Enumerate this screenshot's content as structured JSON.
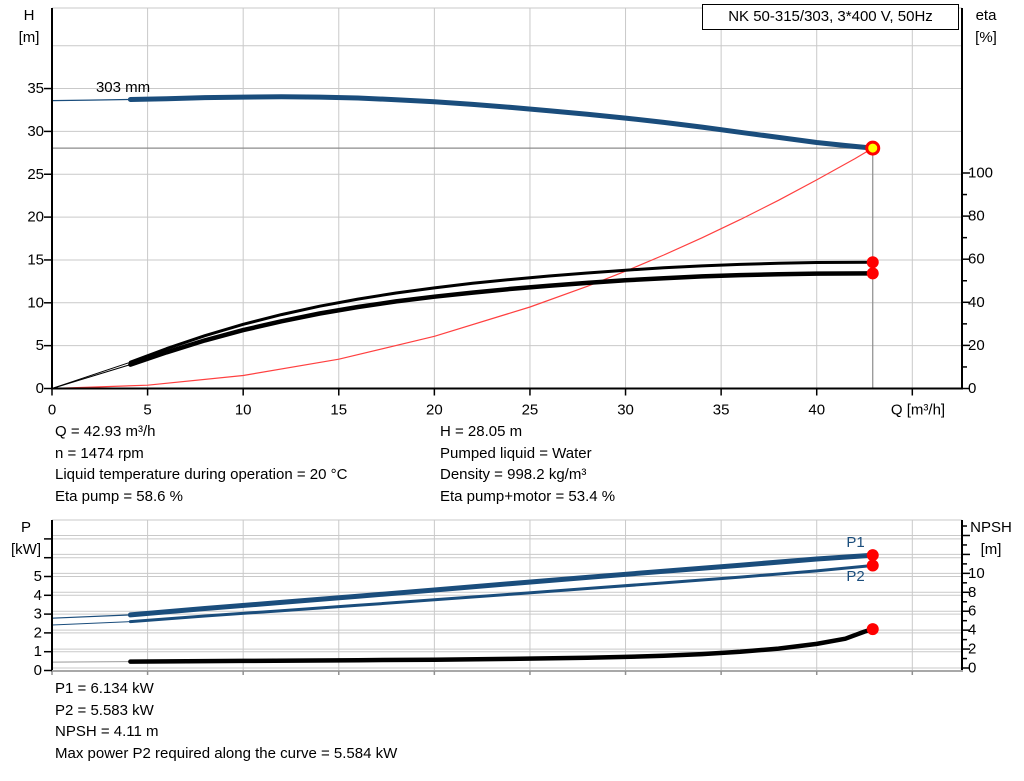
{
  "title_box": {
    "label": "NK 50-315/303, 3*400 V, 50Hz"
  },
  "info_top": {
    "left": [
      "Q = 42.93 m³/h",
      "n = 1474 rpm",
      "Liquid temperature during operation = 20 °C",
      "Eta pump = 58.6 %"
    ],
    "right": [
      "H = 28.05 m",
      "Pumped liquid = Water",
      "Density = 998.2 kg/m³",
      "Eta pump+motor = 53.4 %"
    ]
  },
  "info_bottom": [
    "P1 = 6.134 kW",
    "P2 = 5.583 kW",
    "NPSH = 4.11 m",
    "Max power P2 required along the curve = 5.584 kW"
  ],
  "chart_data": [
    {
      "type": "line",
      "name": "hq-eta-chart",
      "title": "NK 50-315/303, 3*400 V, 50Hz",
      "x_axis": {
        "label": "Q [m³/h]",
        "min": 0,
        "max": 47.6,
        "tick_step": 5,
        "tick_to": 45,
        "label_to": 40,
        "grid_step": 5,
        "grid_to": 45
      },
      "left_axis": {
        "label": "H",
        "unit": "[m]",
        "min": 0,
        "max": 44.4,
        "tick_step": 5,
        "tick_to": 35,
        "label_step": 5,
        "label_to": 35,
        "grid_step": 5,
        "grid_to": 40
      },
      "right_axis": {
        "label": "eta",
        "unit": "[%]",
        "min": 0,
        "max": 176,
        "tick_step": 10,
        "tick_to": 100,
        "label_step": 20,
        "label_to": 100
      },
      "series": [
        {
          "name": "system-curve",
          "color": "#ff4040",
          "width": 1.2,
          "axis": "left",
          "points": [
            [
              0,
              0
            ],
            [
              5,
              0.38
            ],
            [
              10,
              1.52
            ],
            [
              15,
              3.42
            ],
            [
              20,
              6.09
            ],
            [
              25,
              9.51
            ],
            [
              28,
              11.93
            ],
            [
              30,
              13.69
            ],
            [
              32,
              15.58
            ],
            [
              34,
              17.59
            ],
            [
              36,
              19.71
            ],
            [
              38,
              21.96
            ],
            [
              40,
              24.34
            ],
            [
              42,
              26.83
            ],
            [
              42.93,
              28.05
            ]
          ]
        },
        {
          "name": "eta-pump-curve",
          "color": "#000000",
          "width": 3,
          "axis": "right",
          "lead_until": 4.1,
          "lead_width": 1,
          "points": [
            [
              0,
              0
            ],
            [
              4.1,
              12.2
            ],
            [
              6,
              18.5
            ],
            [
              8,
              24.5
            ],
            [
              10,
              29.8
            ],
            [
              12,
              34.3
            ],
            [
              14,
              38.2
            ],
            [
              16,
              41.5
            ],
            [
              18,
              44.3
            ],
            [
              20,
              46.7
            ],
            [
              22,
              48.8
            ],
            [
              24,
              50.6
            ],
            [
              26,
              52.2
            ],
            [
              28,
              53.6
            ],
            [
              30,
              54.9
            ],
            [
              32,
              56
            ],
            [
              34,
              56.9
            ],
            [
              36,
              57.6
            ],
            [
              38,
              58.1
            ],
            [
              40,
              58.45
            ],
            [
              42.93,
              58.6
            ]
          ]
        },
        {
          "name": "eta-pump-motor-curve",
          "color": "#000000",
          "width": 4.5,
          "axis": "right",
          "lead_until": 4.1,
          "lead_width": 1,
          "points": [
            [
              0,
              0
            ],
            [
              4.1,
              11.1
            ],
            [
              6,
              16.8
            ],
            [
              8,
              22.3
            ],
            [
              10,
              27.1
            ],
            [
              12,
              31.2
            ],
            [
              14,
              34.8
            ],
            [
              16,
              37.8
            ],
            [
              18,
              40.4
            ],
            [
              20,
              42.6
            ],
            [
              22,
              44.5
            ],
            [
              24,
              46.2
            ],
            [
              26,
              47.7
            ],
            [
              28,
              49
            ],
            [
              30,
              50.2
            ],
            [
              32,
              51.2
            ],
            [
              34,
              52
            ],
            [
              36,
              52.6
            ],
            [
              38,
              53.05
            ],
            [
              40,
              53.3
            ],
            [
              42.93,
              53.4
            ]
          ]
        },
        {
          "name": "head-curve",
          "color": "#1a4d7c",
          "width": 5,
          "axis": "left",
          "lead_until": 4.1,
          "lead_width": 1.2,
          "points": [
            [
              0,
              33.6
            ],
            [
              2,
              33.65
            ],
            [
              4.1,
              33.72
            ],
            [
              6,
              33.82
            ],
            [
              8,
              33.95
            ],
            [
              10,
              34.0
            ],
            [
              12,
              34.05
            ],
            [
              14,
              34.0
            ],
            [
              16,
              33.9
            ],
            [
              18,
              33.7
            ],
            [
              20,
              33.45
            ],
            [
              22,
              33.15
            ],
            [
              24,
              32.8
            ],
            [
              26,
              32.4
            ],
            [
              28,
              32.0
            ],
            [
              30,
              31.55
            ],
            [
              32,
              31.05
            ],
            [
              34,
              30.5
            ],
            [
              36,
              29.9
            ],
            [
              38,
              29.3
            ],
            [
              40,
              28.7
            ],
            [
              41.5,
              28.35
            ],
            [
              42.93,
              28.05
            ]
          ]
        }
      ],
      "crosshair": {
        "q": 42.93,
        "v": 28.05,
        "axis": "left",
        "color": "#8c8c8c"
      },
      "points_markers": [
        {
          "name": "duty-point",
          "q": 42.93,
          "v": 28.05,
          "axis": "left",
          "r": 6,
          "fill": "#ffff00",
          "stroke": "#ff0000",
          "stroke_width": 3
        },
        {
          "name": "eta-pump-point",
          "q": 42.93,
          "v": 58.6,
          "axis": "right",
          "r": 6,
          "fill": "#ff0000"
        },
        {
          "name": "eta-pump-motor-point",
          "q": 42.93,
          "v": 53.4,
          "axis": "right",
          "r": 6,
          "fill": "#ff0000"
        }
      ],
      "annotations": [
        {
          "name": "impeller-size-label",
          "text": "303 mm",
          "q": 2.3,
          "v": 35.1,
          "axis": "left",
          "color": "#000000"
        }
      ]
    },
    {
      "type": "line",
      "name": "power-npsh-chart",
      "x_axis": {
        "label": "",
        "min": 0,
        "max": 47.6,
        "tick_step": 5,
        "tick_to": 45,
        "label_to": -1,
        "grid_step": 5,
        "grid_to": 45
      },
      "left_axis": {
        "label": "P",
        "unit": "[kW]",
        "min": 0,
        "max": 8,
        "tick_step": 1,
        "tick_to": 7,
        "label_step": 1,
        "label_to": 5,
        "grid_step": 1,
        "grid_to": 7
      },
      "right_axis": {
        "label": "NPSH",
        "unit": "[m]",
        "min": 0,
        "max": 15.9,
        "tick_step": 1,
        "tick_to": 15,
        "label_step": 2,
        "label_to": 10,
        "grid_step": 2,
        "grid_to": 14,
        "grid_zero": true
      },
      "series": [
        {
          "name": "npsh-curve",
          "color": "#000000",
          "width": 4.5,
          "axis": "right",
          "lead_until": 4.1,
          "lead_width": 1,
          "lead_color": "#999999",
          "points": [
            [
              0,
              0.62
            ],
            [
              4.1,
              0.68
            ],
            [
              10,
              0.75
            ],
            [
              16,
              0.82
            ],
            [
              20,
              0.88
            ],
            [
              24,
              0.96
            ],
            [
              28,
              1.08
            ],
            [
              30,
              1.17
            ],
            [
              32,
              1.3
            ],
            [
              34,
              1.47
            ],
            [
              36,
              1.71
            ],
            [
              38,
              2.05
            ],
            [
              40,
              2.55
            ],
            [
              41.5,
              3.1
            ],
            [
              42.5,
              3.85
            ],
            [
              42.93,
              4.11
            ]
          ]
        },
        {
          "name": "p2-curve",
          "color": "#1a4d7c",
          "width": 3,
          "axis": "left",
          "lead_until": 4.1,
          "lead_width": 1,
          "points": [
            [
              0,
              2.42
            ],
            [
              4.1,
              2.6
            ],
            [
              8,
              2.9
            ],
            [
              12,
              3.18
            ],
            [
              16,
              3.47
            ],
            [
              20,
              3.76
            ],
            [
              24,
              4.06
            ],
            [
              28,
              4.36
            ],
            [
              32,
              4.66
            ],
            [
              36,
              4.97
            ],
            [
              40,
              5.3
            ],
            [
              42.93,
              5.583
            ]
          ]
        },
        {
          "name": "p1-curve",
          "color": "#1a4d7c",
          "width": 5,
          "axis": "left",
          "lead_until": 4.1,
          "lead_width": 1.2,
          "points": [
            [
              0,
              2.78
            ],
            [
              4.1,
              2.96
            ],
            [
              8,
              3.3
            ],
            [
              12,
              3.62
            ],
            [
              16,
              3.95
            ],
            [
              20,
              4.28
            ],
            [
              24,
              4.62
            ],
            [
              28,
              4.95
            ],
            [
              32,
              5.28
            ],
            [
              36,
              5.6
            ],
            [
              40,
              5.93
            ],
            [
              42.93,
              6.134
            ]
          ]
        }
      ],
      "points_markers": [
        {
          "name": "p1-point",
          "q": 42.93,
          "v": 6.134,
          "axis": "left",
          "r": 6,
          "fill": "#ff0000"
        },
        {
          "name": "p2-point",
          "q": 42.93,
          "v": 5.583,
          "axis": "left",
          "r": 6,
          "fill": "#ff0000"
        },
        {
          "name": "npsh-point",
          "q": 42.93,
          "v": 4.11,
          "axis": "right",
          "r": 6,
          "fill": "#ff0000"
        }
      ],
      "annotations": [
        {
          "name": "p1-label",
          "text": "P1",
          "q": 41.55,
          "v": 6.82,
          "axis": "left",
          "color": "#1a4d7c"
        },
        {
          "name": "p2-label",
          "text": "P2",
          "q": 41.55,
          "v": 5.0,
          "axis": "left",
          "color": "#1a4d7c"
        }
      ]
    }
  ]
}
